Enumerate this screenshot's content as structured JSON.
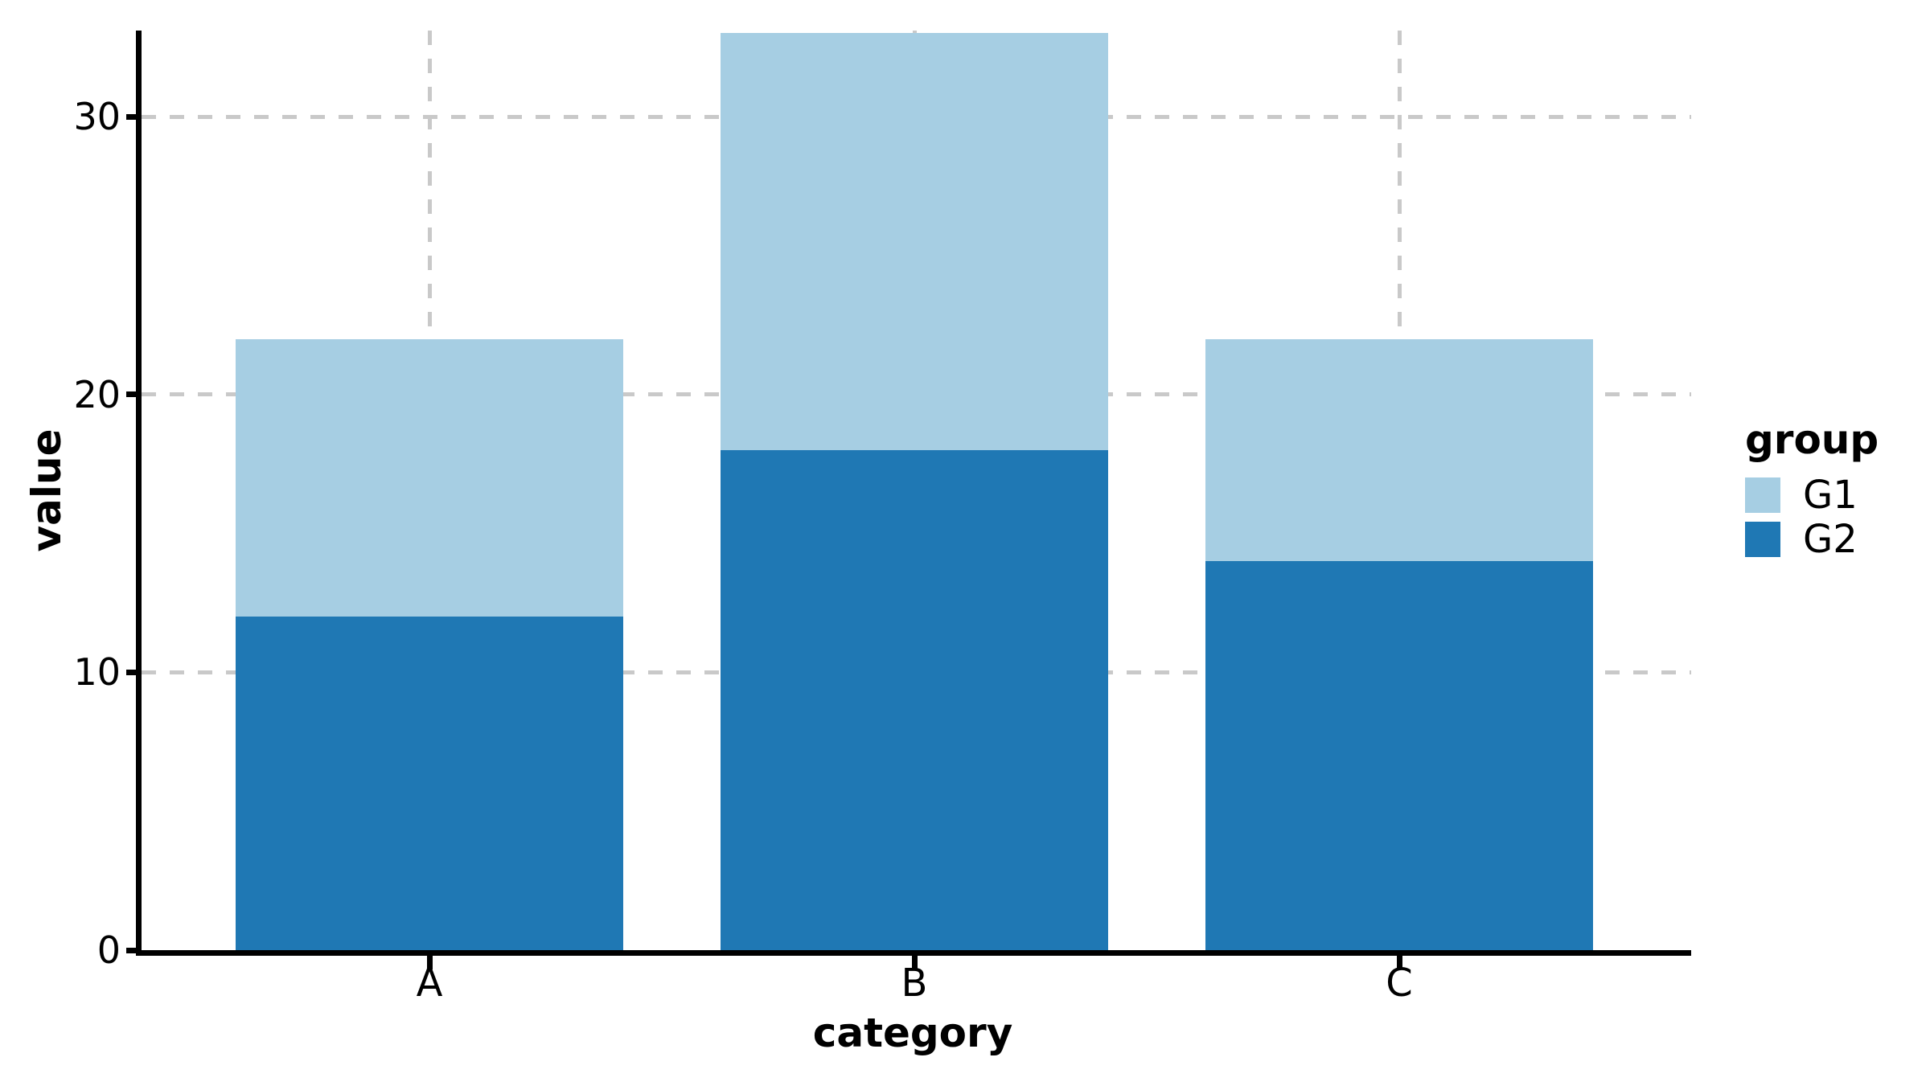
{
  "chart_data": {
    "type": "bar",
    "stacked": true,
    "title": "",
    "xlabel": "category",
    "ylabel": "value",
    "categories": [
      "A",
      "B",
      "C"
    ],
    "series": [
      {
        "name": "G1",
        "color": "#a6cee3",
        "values": [
          10,
          15,
          8
        ]
      },
      {
        "name": "G2",
        "color": "#1f78b4",
        "values": [
          12,
          18,
          14
        ]
      }
    ],
    "totals": [
      22,
      33,
      22
    ],
    "ylim": [
      0,
      33.6
    ],
    "yticks": [
      0,
      10,
      20,
      30
    ],
    "ytick_labels": [
      "0",
      "10",
      "20",
      "30"
    ],
    "grid": "dashed",
    "grid_color": "#c9c9c9",
    "axis_color": "#000000",
    "background_color": "#ffffff",
    "legend": {
      "title": "group",
      "position": "right",
      "entries": [
        "G1",
        "G2"
      ]
    }
  }
}
